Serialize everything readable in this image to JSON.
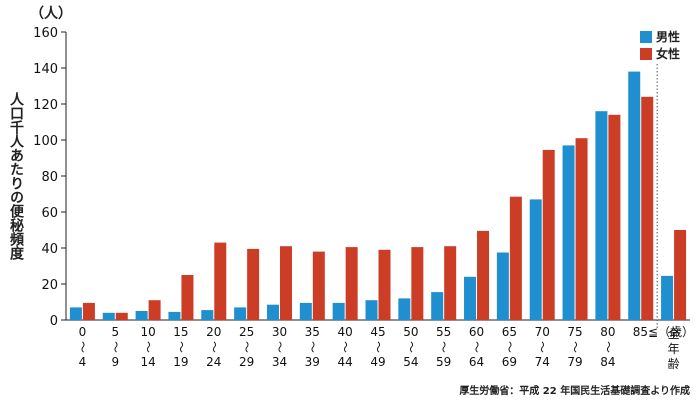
{
  "chart_data": {
    "type": "bar",
    "title": "",
    "ylabel": "人口千人あたりの便秘頻度",
    "yunit": "（人）",
    "ylim": [
      0,
      160
    ],
    "yticks": [
      0,
      20,
      40,
      60,
      80,
      100,
      120,
      140,
      160
    ],
    "categories": [
      {
        "top": "0",
        "bottom": "4"
      },
      {
        "top": "5",
        "bottom": "9"
      },
      {
        "top": "10",
        "bottom": "14"
      },
      {
        "top": "15",
        "bottom": "19"
      },
      {
        "top": "20",
        "bottom": "24"
      },
      {
        "top": "25",
        "bottom": "29"
      },
      {
        "top": "30",
        "bottom": "34"
      },
      {
        "top": "35",
        "bottom": "39"
      },
      {
        "top": "40",
        "bottom": "44"
      },
      {
        "top": "45",
        "bottom": "49"
      },
      {
        "top": "50",
        "bottom": "54"
      },
      {
        "top": "55",
        "bottom": "59"
      },
      {
        "top": "60",
        "bottom": "64"
      },
      {
        "top": "65",
        "bottom": "69"
      },
      {
        "top": "70",
        "bottom": "74"
      },
      {
        "top": "75",
        "bottom": "79"
      },
      {
        "top": "80",
        "bottom": "84"
      },
      {
        "top": "85≦（歳）",
        "bottom": ""
      },
      {
        "top": "全年齢",
        "bottom": ""
      }
    ],
    "series": [
      {
        "name": "男性",
        "color": "#1f8fd0",
        "values": [
          7,
          4,
          5,
          4.5,
          5.5,
          7,
          8.5,
          9.5,
          9.5,
          11,
          12,
          15.5,
          24,
          37.5,
          67,
          97,
          116,
          138,
          24.5
        ]
      },
      {
        "name": "女性",
        "color": "#cc3d26",
        "values": [
          9.5,
          4,
          11,
          25,
          43,
          39.5,
          41,
          38,
          40.5,
          39,
          40.5,
          41,
          49.5,
          68.5,
          94.5,
          101,
          114,
          124,
          50
        ]
      }
    ],
    "separator_before_index": 18,
    "legend_position": "top-right",
    "grid": false,
    "source_note": "厚生労働省：平成 22 年国民生活基礎調査より作成"
  }
}
